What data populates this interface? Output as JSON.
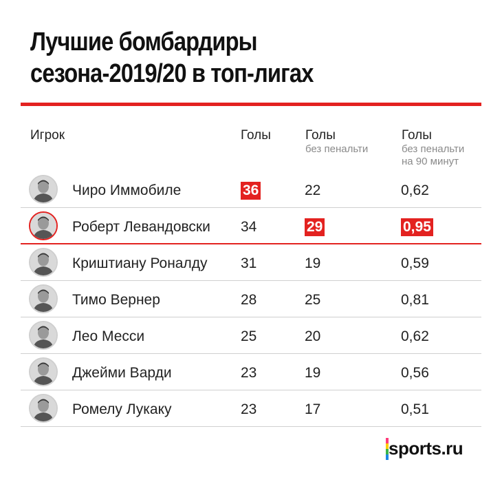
{
  "title_lines": [
    "Лучшие бомбардиры",
    "сезона-2019/20 в топ-лигах"
  ],
  "colors": {
    "accent": "#e32220",
    "text": "#111111",
    "muted": "#8a8a8a",
    "rule": "#cfcfcf"
  },
  "headers": {
    "player": "Игрок",
    "goals": "Голы",
    "np_goals": "Голы",
    "np_goals_sub": "без пенальти",
    "np90": "Голы",
    "np90_sub1": "без пенальти",
    "np90_sub2": "на 90 минут"
  },
  "chart_data": {
    "type": "table",
    "title": "Лучшие бомбардиры сезона-2019/20 в топ-лигах",
    "columns": [
      "Игрок",
      "Голы",
      "Голы без пенальти",
      "Голы без пенальти на 90 минут"
    ],
    "rows": [
      {
        "player": "Чиро Иммобиле",
        "goals": "36",
        "np_goals": "22",
        "np90": "0,62",
        "hl_goals": true,
        "hl_np": false,
        "hl_np90": false,
        "avatar_icon": "player-photo-icon"
      },
      {
        "player": "Роберт Левандовски",
        "goals": "34",
        "np_goals": "29",
        "np90": "0,95",
        "hl_goals": false,
        "hl_np": true,
        "hl_np90": true,
        "avatar_icon": "player-photo-icon",
        "highlighted": true
      },
      {
        "player": "Криштиану Роналду",
        "goals": "31",
        "np_goals": "19",
        "np90": "0,59",
        "hl_goals": false,
        "hl_np": false,
        "hl_np90": false,
        "avatar_icon": "player-photo-icon"
      },
      {
        "player": "Тимо Вернер",
        "goals": "28",
        "np_goals": "25",
        "np90": "0,81",
        "hl_goals": false,
        "hl_np": false,
        "hl_np90": false,
        "avatar_icon": "player-photo-icon"
      },
      {
        "player": "Лео Месси",
        "goals": "25",
        "np_goals": "20",
        "np90": "0,62",
        "hl_goals": false,
        "hl_np": false,
        "hl_np90": false,
        "avatar_icon": "player-photo-icon"
      },
      {
        "player": "Джейми Варди",
        "goals": "23",
        "np_goals": "19",
        "np90": "0,56",
        "hl_goals": false,
        "hl_np": false,
        "hl_np90": false,
        "avatar_icon": "player-photo-icon"
      },
      {
        "player": "Ромелу Лукаку",
        "goals": "23",
        "np_goals": "17",
        "np90": "0,51",
        "hl_goals": false,
        "hl_np": false,
        "hl_np90": false,
        "avatar_icon": "player-photo-icon"
      }
    ]
  },
  "logo": {
    "text": "sports.ru",
    "bar_colors": [
      "#ff3b7a",
      "#ffcc00",
      "#3ab54a",
      "#1e88e5"
    ]
  }
}
